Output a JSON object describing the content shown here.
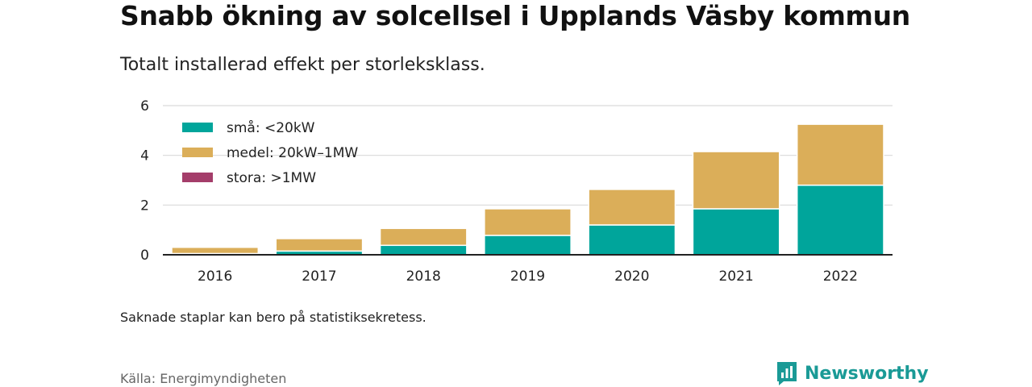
{
  "title": "Snabb ökning av solcellsel i Upplands Väsby kommun",
  "subtitle": "Totalt installerad effekt per storleksklass.",
  "note": "Saknade staplar kan bero på statistiksekretess.",
  "source": "Källa: Energimyndigheten",
  "brand": {
    "name": "Newsworthy",
    "color": "#1a9a96"
  },
  "chart_data": {
    "type": "bar",
    "stacked": true,
    "categories": [
      "2016",
      "2017",
      "2018",
      "2019",
      "2020",
      "2021",
      "2022"
    ],
    "series": [
      {
        "name": "små: <20kW",
        "color": "#00a59b",
        "values": [
          0.05,
          0.15,
          0.38,
          0.78,
          1.2,
          1.85,
          2.8
        ]
      },
      {
        "name": "medel: 20kW–1MW",
        "color": "#dbae59",
        "values": [
          0.25,
          0.5,
          0.68,
          1.07,
          1.43,
          2.3,
          2.45
        ]
      },
      {
        "name": "stora: >1MW",
        "color": "#a43d6a",
        "values": [
          0,
          0,
          0,
          0,
          0,
          0,
          0
        ]
      }
    ],
    "ylim": [
      0,
      6
    ],
    "yticks": [
      0,
      2,
      4,
      6
    ],
    "xlabel": "",
    "ylabel": "",
    "grid": true,
    "legend_position": "top-left"
  }
}
